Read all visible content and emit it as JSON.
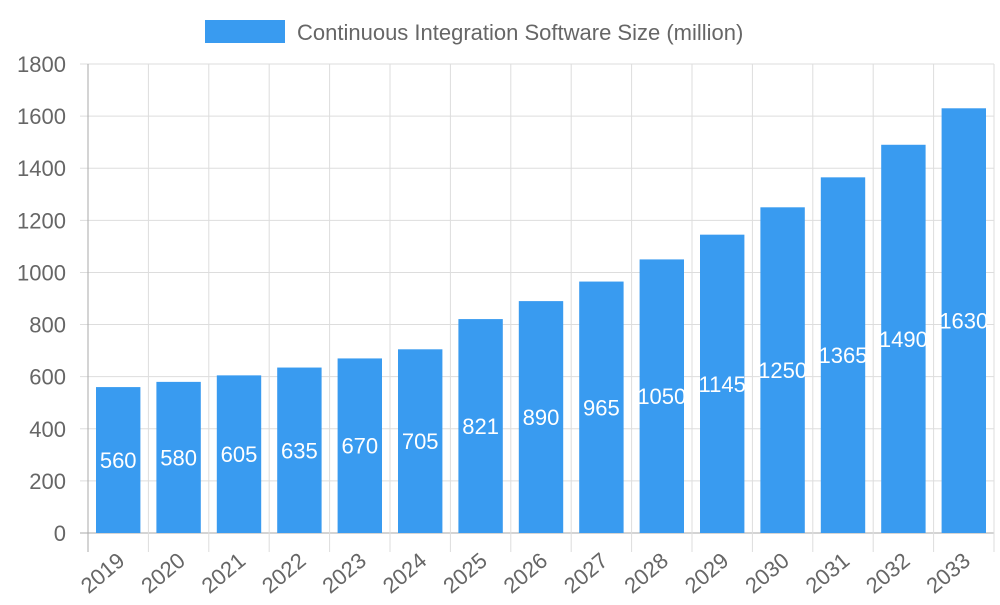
{
  "chart_data": {
    "type": "bar",
    "title": "",
    "xlabel": "",
    "ylabel": "",
    "legend": {
      "position": "top",
      "entries": [
        "Continuous Integration Software Size (million)"
      ]
    },
    "categories": [
      "2019",
      "2020",
      "2021",
      "2022",
      "2023",
      "2024",
      "2025",
      "2026",
      "2027",
      "2028",
      "2029",
      "2030",
      "2031",
      "2032",
      "2033"
    ],
    "series": [
      {
        "name": "Continuous Integration Software Size (million)",
        "values": [
          560,
          580,
          605,
          635,
          670,
          705,
          821,
          890,
          965,
          1050,
          1145,
          1250,
          1365,
          1490,
          1630
        ],
        "color": "#399bf0"
      }
    ],
    "ylim": [
      0,
      1800
    ],
    "yticks": [
      0,
      200,
      400,
      600,
      800,
      1000,
      1200,
      1400,
      1600,
      1800
    ],
    "grid": true,
    "data_labels": "inside-center, white"
  }
}
